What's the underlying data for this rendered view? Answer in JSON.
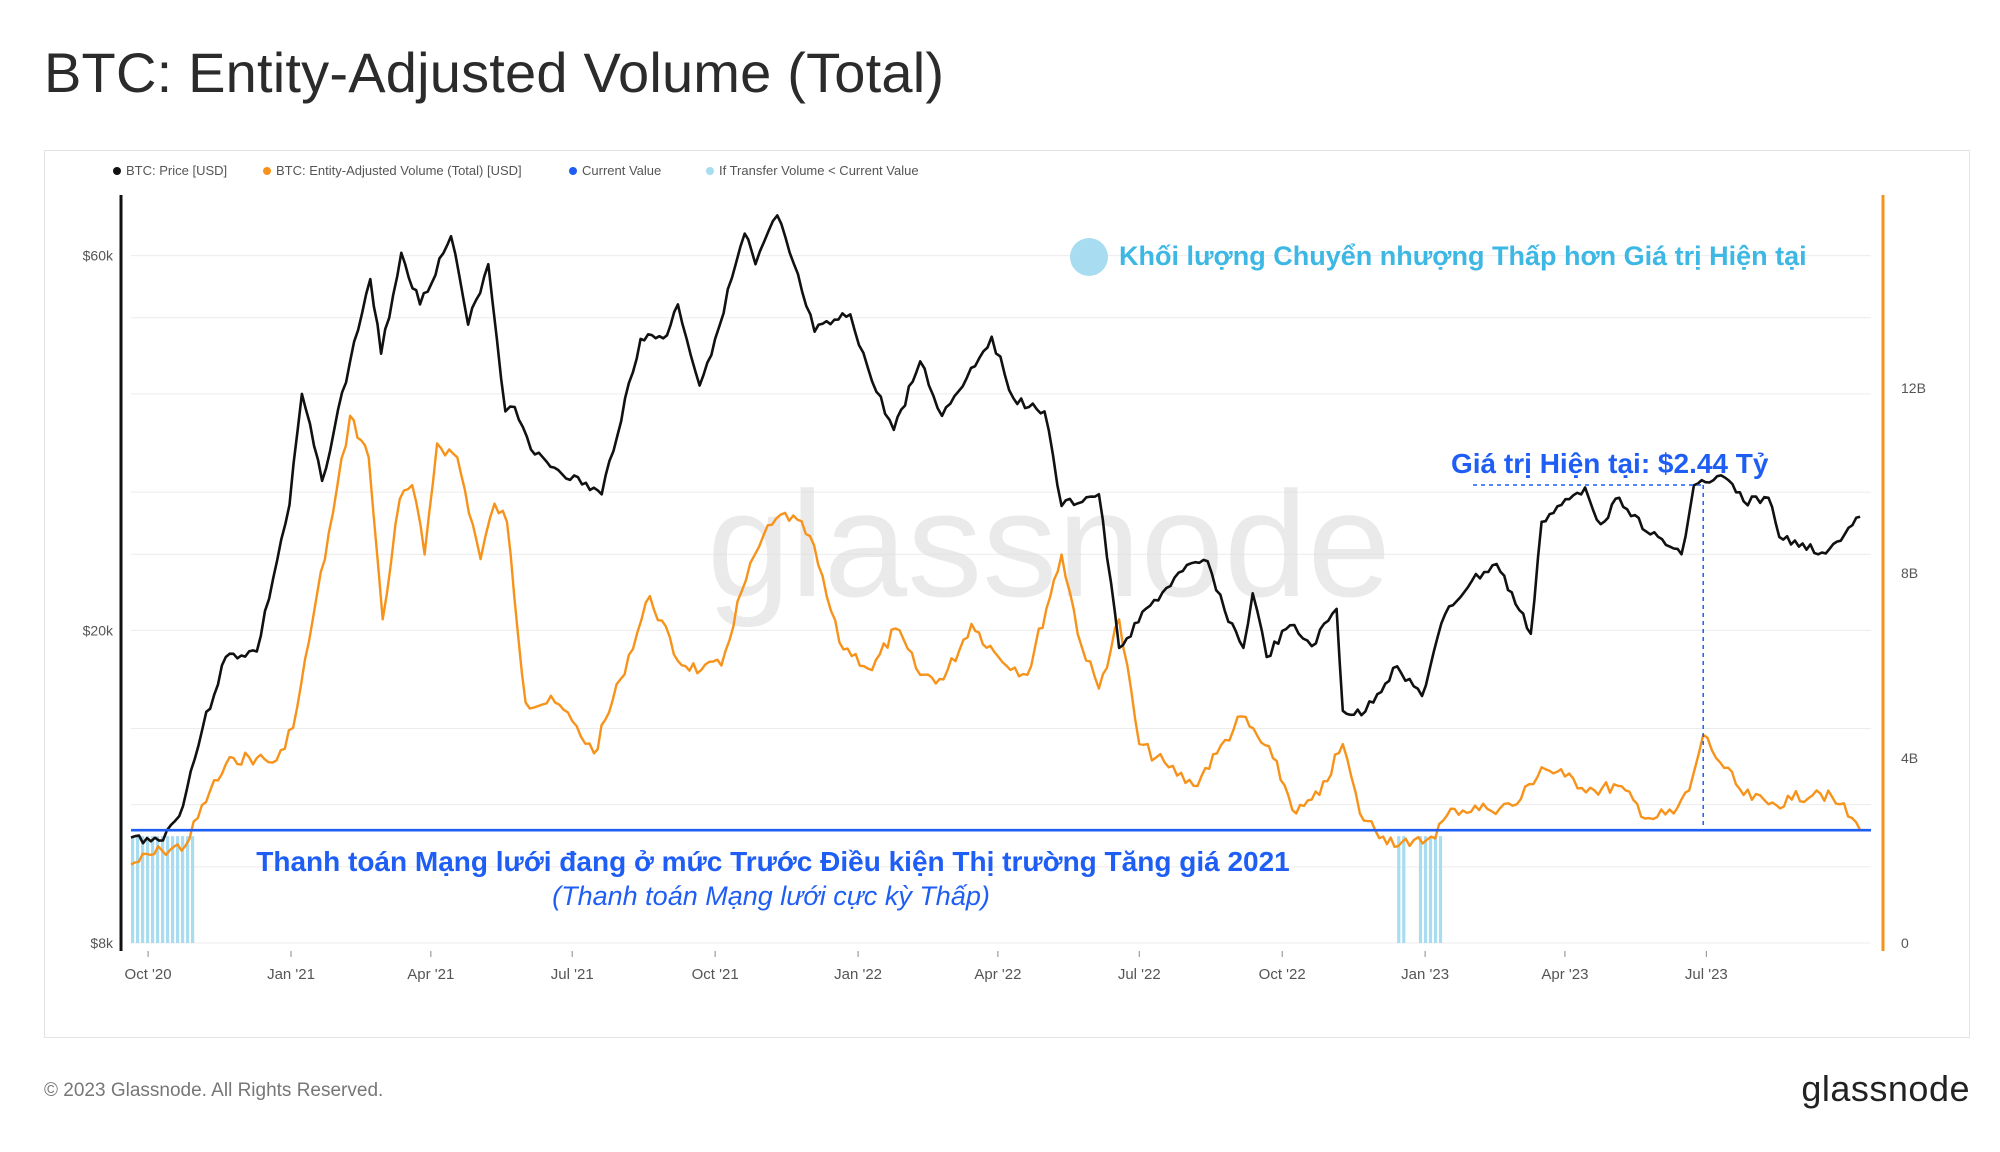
{
  "title": "BTC: Entity-Adjusted Volume (Total)",
  "footer": {
    "copyright": "© 2023 Glassnode. All Rights Reserved.",
    "brand": "glassnode"
  },
  "watermark": "glassnode",
  "colors": {
    "price": "#111111",
    "volume": "#f7931a",
    "current": "#1f5ef5",
    "below": "#a8dcf0",
    "annotation_blue": "#1f5ef5",
    "annotation_cyan": "#3db7e4"
  },
  "chart_data": {
    "type": "line",
    "title": "BTC: Entity-Adjusted Volume (Total)",
    "legend": [
      {
        "label": "BTC: Price [USD]",
        "color": "#111111"
      },
      {
        "label": "BTC: Entity-Adjusted Volume (Total) [USD]",
        "color": "#f7931a"
      },
      {
        "label": "Current Value",
        "color": "#1f5ef5"
      },
      {
        "label": "If Transfer Volume < Current Value",
        "color": "#a8dcf0"
      }
    ],
    "x_range": [
      "2020-09-20",
      "2023-10-15"
    ],
    "x_ticks": [
      "Oct '20",
      "Jan '21",
      "Apr '21",
      "Jul '21",
      "Oct '21",
      "Jan '22",
      "Apr '22",
      "Jul '22",
      "Oct '22",
      "Jan '23",
      "Apr '23",
      "Jul '23"
    ],
    "y_left": {
      "scale": "log",
      "range": [
        8000,
        70000
      ],
      "ticks": [
        "$8k",
        "$20k",
        "$60k"
      ]
    },
    "y_right": {
      "scale": "linear",
      "range": [
        0,
        16000000000
      ],
      "ticks": [
        "0",
        "4B",
        "8B",
        "12B"
      ]
    },
    "series": [
      {
        "name": "BTC: Price [USD]",
        "axis": "left",
        "points": [
          [
            "2020-09-20",
            10900
          ],
          [
            "2020-10-08",
            10800
          ],
          [
            "2020-10-21",
            11600
          ],
          [
            "2020-11-05",
            15000
          ],
          [
            "2020-11-20",
            18500
          ],
          [
            "2020-12-10",
            18800
          ],
          [
            "2020-12-31",
            28900
          ],
          [
            "2021-01-08",
            40000
          ],
          [
            "2021-01-21",
            31000
          ],
          [
            "2021-02-08",
            44000
          ],
          [
            "2021-02-21",
            56000
          ],
          [
            "2021-02-28",
            45000
          ],
          [
            "2021-03-13",
            60500
          ],
          [
            "2021-03-25",
            52000
          ],
          [
            "2021-04-14",
            63500
          ],
          [
            "2021-04-25",
            49000
          ],
          [
            "2021-05-08",
            58500
          ],
          [
            "2021-05-19",
            38000
          ],
          [
            "2021-05-25",
            38500
          ],
          [
            "2021-06-07",
            33500
          ],
          [
            "2021-06-22",
            32000
          ],
          [
            "2021-07-20",
            29800
          ],
          [
            "2021-08-14",
            47000
          ],
          [
            "2021-08-31",
            47500
          ],
          [
            "2021-09-07",
            52000
          ],
          [
            "2021-09-21",
            41000
          ],
          [
            "2021-10-01",
            47000
          ],
          [
            "2021-10-20",
            64000
          ],
          [
            "2021-10-27",
            58500
          ],
          [
            "2021-11-10",
            67500
          ],
          [
            "2021-11-26",
            54000
          ],
          [
            "2021-12-04",
            48000
          ],
          [
            "2021-12-27",
            50500
          ],
          [
            "2022-01-10",
            41500
          ],
          [
            "2022-01-24",
            36000
          ],
          [
            "2022-02-10",
            44000
          ],
          [
            "2022-02-24",
            37500
          ],
          [
            "2022-03-28",
            47300
          ],
          [
            "2022-04-11",
            39500
          ],
          [
            "2022-05-01",
            38000
          ],
          [
            "2022-05-12",
            28800
          ],
          [
            "2022-06-05",
            29800
          ],
          [
            "2022-06-18",
            19000
          ],
          [
            "2022-07-08",
            21500
          ],
          [
            "2022-07-29",
            23800
          ],
          [
            "2022-08-14",
            24500
          ],
          [
            "2022-08-25",
            21200
          ],
          [
            "2022-09-06",
            19000
          ],
          [
            "2022-09-12",
            22300
          ],
          [
            "2022-09-21",
            18500
          ],
          [
            "2022-10-06",
            20300
          ],
          [
            "2022-10-20",
            19100
          ],
          [
            "2022-11-05",
            21300
          ],
          [
            "2022-11-09",
            15800
          ],
          [
            "2022-11-21",
            15600
          ],
          [
            "2022-12-14",
            18000
          ],
          [
            "2022-12-30",
            16500
          ],
          [
            "2023-01-14",
            21000
          ],
          [
            "2023-01-31",
            23100
          ],
          [
            "2023-02-16",
            24300
          ],
          [
            "2023-03-10",
            19800
          ],
          [
            "2023-03-17",
            27500
          ],
          [
            "2023-04-14",
            30400
          ],
          [
            "2023-04-24",
            27300
          ],
          [
            "2023-05-06",
            29500
          ],
          [
            "2023-05-26",
            26500
          ],
          [
            "2023-06-15",
            25000
          ],
          [
            "2023-06-23",
            30600
          ],
          [
            "2023-07-13",
            31300
          ],
          [
            "2023-07-25",
            29200
          ],
          [
            "2023-08-10",
            29500
          ],
          [
            "2023-08-17",
            26300
          ],
          [
            "2023-09-01",
            25800
          ],
          [
            "2023-09-11",
            25000
          ],
          [
            "2023-09-28",
            26500
          ],
          [
            "2023-10-08",
            27900
          ]
        ]
      },
      {
        "name": "BTC: Entity-Adjusted Volume (Total) [USD]",
        "axis": "right",
        "points": [
          [
            "2020-09-20",
            1700000000
          ],
          [
            "2020-10-10",
            2000000000
          ],
          [
            "2020-10-25",
            2100000000
          ],
          [
            "2020-11-10",
            3300000000
          ],
          [
            "2020-11-25",
            4000000000
          ],
          [
            "2020-12-10",
            4000000000
          ],
          [
            "2020-12-20",
            3900000000
          ],
          [
            "2020-12-28",
            4200000000
          ],
          [
            "2021-01-05",
            5100000000
          ],
          [
            "2021-01-15",
            7000000000
          ],
          [
            "2021-01-28",
            9300000000
          ],
          [
            "2021-02-08",
            11400000000
          ],
          [
            "2021-02-20",
            10500000000
          ],
          [
            "2021-03-01",
            7000000000
          ],
          [
            "2021-03-12",
            9600000000
          ],
          [
            "2021-03-20",
            9900000000
          ],
          [
            "2021-03-28",
            8400000000
          ],
          [
            "2021-04-05",
            10800000000
          ],
          [
            "2021-04-18",
            10500000000
          ],
          [
            "2021-05-03",
            8300000000
          ],
          [
            "2021-05-12",
            9500000000
          ],
          [
            "2021-05-20",
            9100000000
          ],
          [
            "2021-06-01",
            5200000000
          ],
          [
            "2021-06-20",
            5200000000
          ],
          [
            "2021-07-01",
            4800000000
          ],
          [
            "2021-07-15",
            4100000000
          ],
          [
            "2021-08-01",
            5700000000
          ],
          [
            "2021-08-20",
            7500000000
          ],
          [
            "2021-09-07",
            6100000000
          ],
          [
            "2021-09-22",
            5900000000
          ],
          [
            "2021-10-05",
            6000000000
          ],
          [
            "2021-10-18",
            7600000000
          ],
          [
            "2021-11-01",
            8800000000
          ],
          [
            "2021-11-15",
            9300000000
          ],
          [
            "2021-12-01",
            8800000000
          ],
          [
            "2021-12-20",
            6500000000
          ],
          [
            "2022-01-10",
            5900000000
          ],
          [
            "2022-01-25",
            6800000000
          ],
          [
            "2022-02-10",
            5800000000
          ],
          [
            "2022-02-25",
            5700000000
          ],
          [
            "2022-03-15",
            6900000000
          ],
          [
            "2022-04-01",
            6200000000
          ],
          [
            "2022-04-20",
            5800000000
          ],
          [
            "2022-05-12",
            8400000000
          ],
          [
            "2022-05-25",
            6400000000
          ],
          [
            "2022-06-05",
            5500000000
          ],
          [
            "2022-06-18",
            7000000000
          ],
          [
            "2022-07-01",
            4300000000
          ],
          [
            "2022-07-20",
            3800000000
          ],
          [
            "2022-08-05",
            3400000000
          ],
          [
            "2022-08-20",
            4100000000
          ],
          [
            "2022-09-05",
            4900000000
          ],
          [
            "2022-09-25",
            4000000000
          ],
          [
            "2022-10-10",
            2800000000
          ],
          [
            "2022-10-25",
            3200000000
          ],
          [
            "2022-11-09",
            4300000000
          ],
          [
            "2022-11-20",
            2800000000
          ],
          [
            "2022-12-05",
            2300000000
          ],
          [
            "2022-12-22",
            2100000000
          ],
          [
            "2023-01-05",
            2300000000
          ],
          [
            "2023-01-20",
            2900000000
          ],
          [
            "2023-02-10",
            2900000000
          ],
          [
            "2023-03-01",
            3000000000
          ],
          [
            "2023-03-17",
            3800000000
          ],
          [
            "2023-04-01",
            3600000000
          ],
          [
            "2023-04-20",
            3300000000
          ],
          [
            "2023-05-05",
            3400000000
          ],
          [
            "2023-05-25",
            2700000000
          ],
          [
            "2023-06-10",
            2800000000
          ],
          [
            "2023-06-20",
            3300000000
          ],
          [
            "2023-06-29",
            4500000000
          ],
          [
            "2023-07-10",
            3900000000
          ],
          [
            "2023-07-25",
            3200000000
          ],
          [
            "2023-08-10",
            3000000000
          ],
          [
            "2023-08-25",
            3100000000
          ],
          [
            "2023-09-10",
            3300000000
          ],
          [
            "2023-09-25",
            3000000000
          ],
          [
            "2023-10-08",
            2440000000
          ]
        ]
      }
    ],
    "current_value": {
      "label": "Current Value",
      "value": 2440000000
    },
    "below_current_periods": [
      [
        "2020-09-20",
        "2020-10-30"
      ],
      [
        "2022-12-14",
        "2022-12-18"
      ],
      [
        "2022-12-28",
        "2023-01-12"
      ]
    ],
    "annotations": {
      "legend_note": "Khối lượng Chuyển nhượng Thấp hơn Giá trị Hiện tại",
      "current_value_label": "Giá trị Hiện tại: $2.44 Tỷ",
      "current_value_date": "2023-06-29",
      "headline": "Thanh toán Mạng lưới đang ở mức Trước Điều kiện Thị trường Tăng giá 2021",
      "subline": "(Thanh toán Mạng lưới cực kỳ Thấp)"
    }
  }
}
